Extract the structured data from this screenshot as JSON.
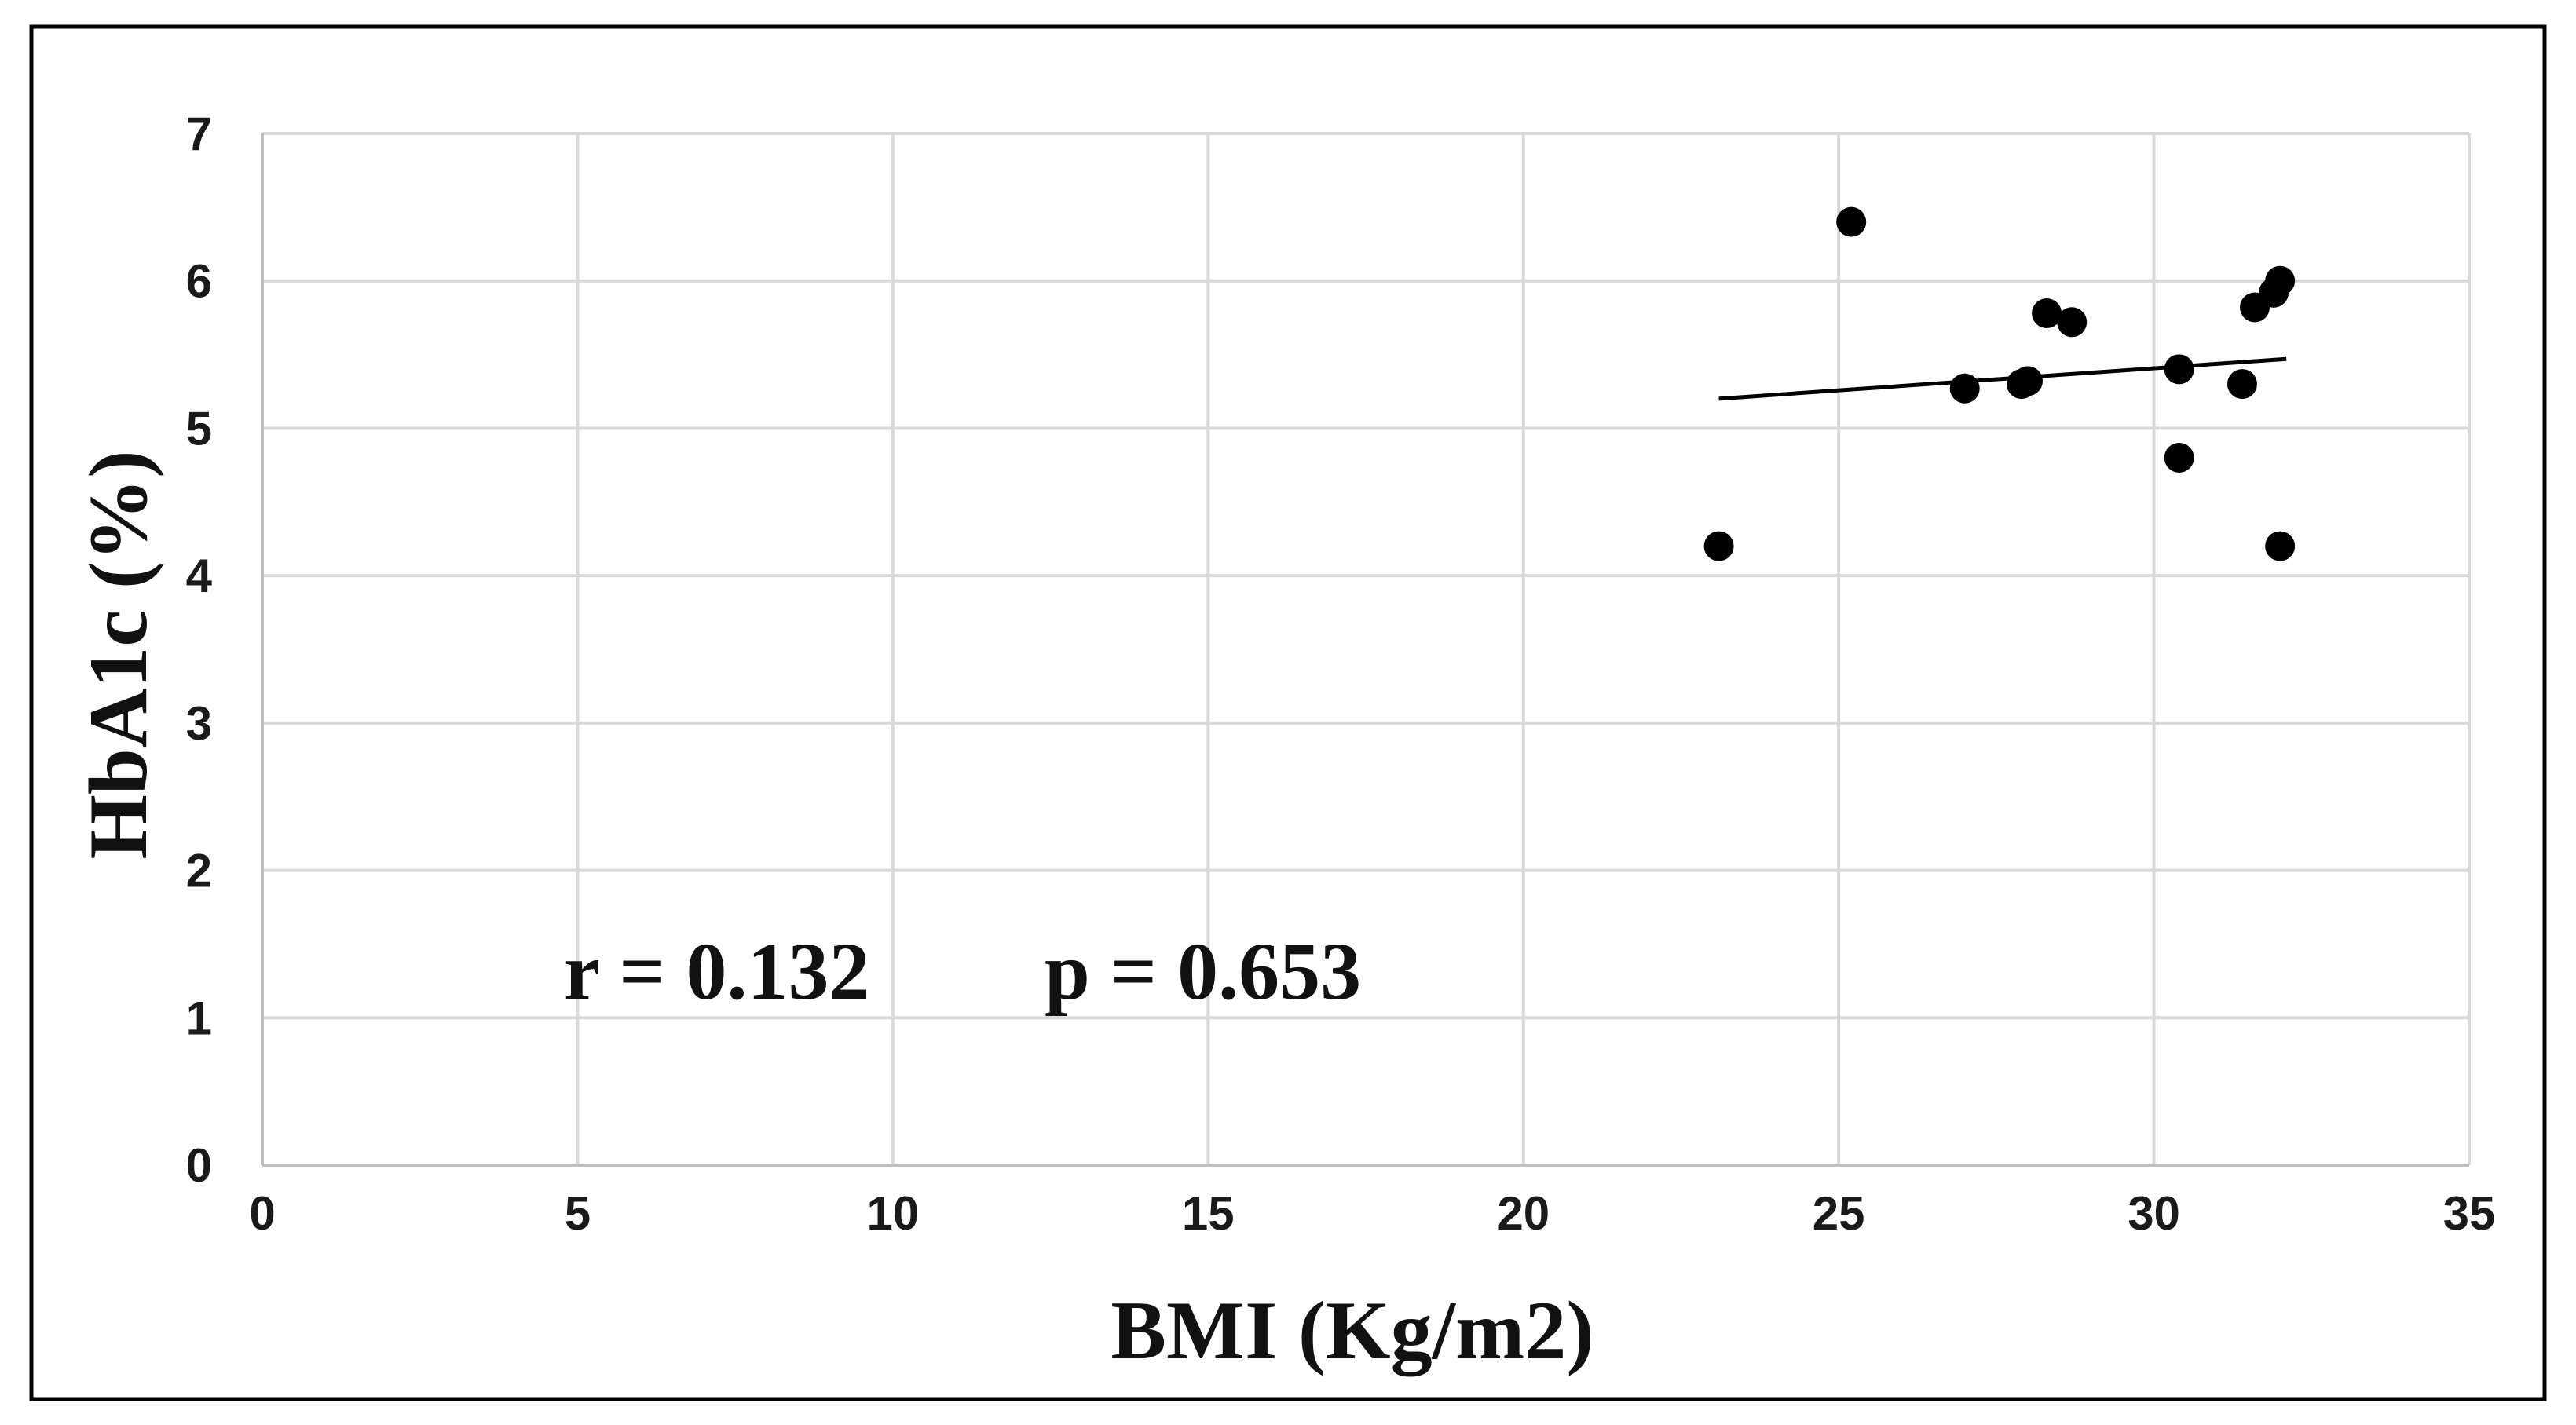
{
  "chart_data": {
    "type": "scatter",
    "xlabel": "BMI (Kg/m2)",
    "ylabel": "HbA1c (%)",
    "xlim": [
      0,
      35
    ],
    "ylim": [
      0,
      7
    ],
    "xticks": [
      "0",
      "5",
      "10",
      "15",
      "20",
      "25",
      "30",
      "35"
    ],
    "yticks": [
      "0",
      "1",
      "2",
      "3",
      "4",
      "5",
      "6",
      "7"
    ],
    "grid": true,
    "legend": "none",
    "points": [
      {
        "x": 23.1,
        "y": 4.2
      },
      {
        "x": 25.2,
        "y": 6.4
      },
      {
        "x": 27.0,
        "y": 5.27
      },
      {
        "x": 27.9,
        "y": 5.3
      },
      {
        "x": 28.0,
        "y": 5.32
      },
      {
        "x": 28.3,
        "y": 5.78
      },
      {
        "x": 28.7,
        "y": 5.72
      },
      {
        "x": 30.4,
        "y": 5.4
      },
      {
        "x": 30.4,
        "y": 4.8
      },
      {
        "x": 31.4,
        "y": 5.3
      },
      {
        "x": 31.6,
        "y": 5.82
      },
      {
        "x": 31.9,
        "y": 5.92
      },
      {
        "x": 32.0,
        "y": 6.0
      },
      {
        "x": 32.0,
        "y": 4.2
      }
    ],
    "trendline": {
      "x": [
        23.1,
        32.1
      ],
      "y": [
        5.2,
        5.47
      ]
    },
    "annotations": {
      "r_text": "r = 0.132",
      "p_text": "p = 0.653"
    }
  }
}
